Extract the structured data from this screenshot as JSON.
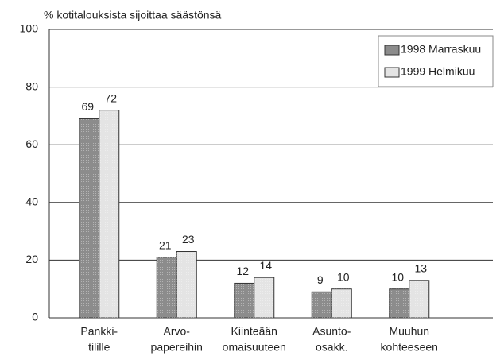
{
  "chart_data": {
    "type": "bar",
    "title": "% kotitalouksista sijoittaa säästönsä",
    "categories": [
      [
        "Pankki-",
        "tilille"
      ],
      [
        "Arvo-",
        "papereihin"
      ],
      [
        "Kiinteään",
        "omaisuuteen"
      ],
      [
        "Asunto-",
        "osakk."
      ],
      [
        "Muuhun",
        "kohteeseen"
      ]
    ],
    "series": [
      {
        "name": "1998 Marraskuu",
        "color": "#8c8c8c",
        "values": [
          69,
          21,
          12,
          9,
          10
        ]
      },
      {
        "name": "1999 Helmikuu",
        "color": "#e4e4e4",
        "values": [
          72,
          23,
          14,
          10,
          13
        ]
      }
    ],
    "ylim": [
      0,
      100
    ],
    "yticks": [
      0,
      20,
      40,
      60,
      80,
      100
    ],
    "grid": true,
    "legend": "top-right"
  }
}
